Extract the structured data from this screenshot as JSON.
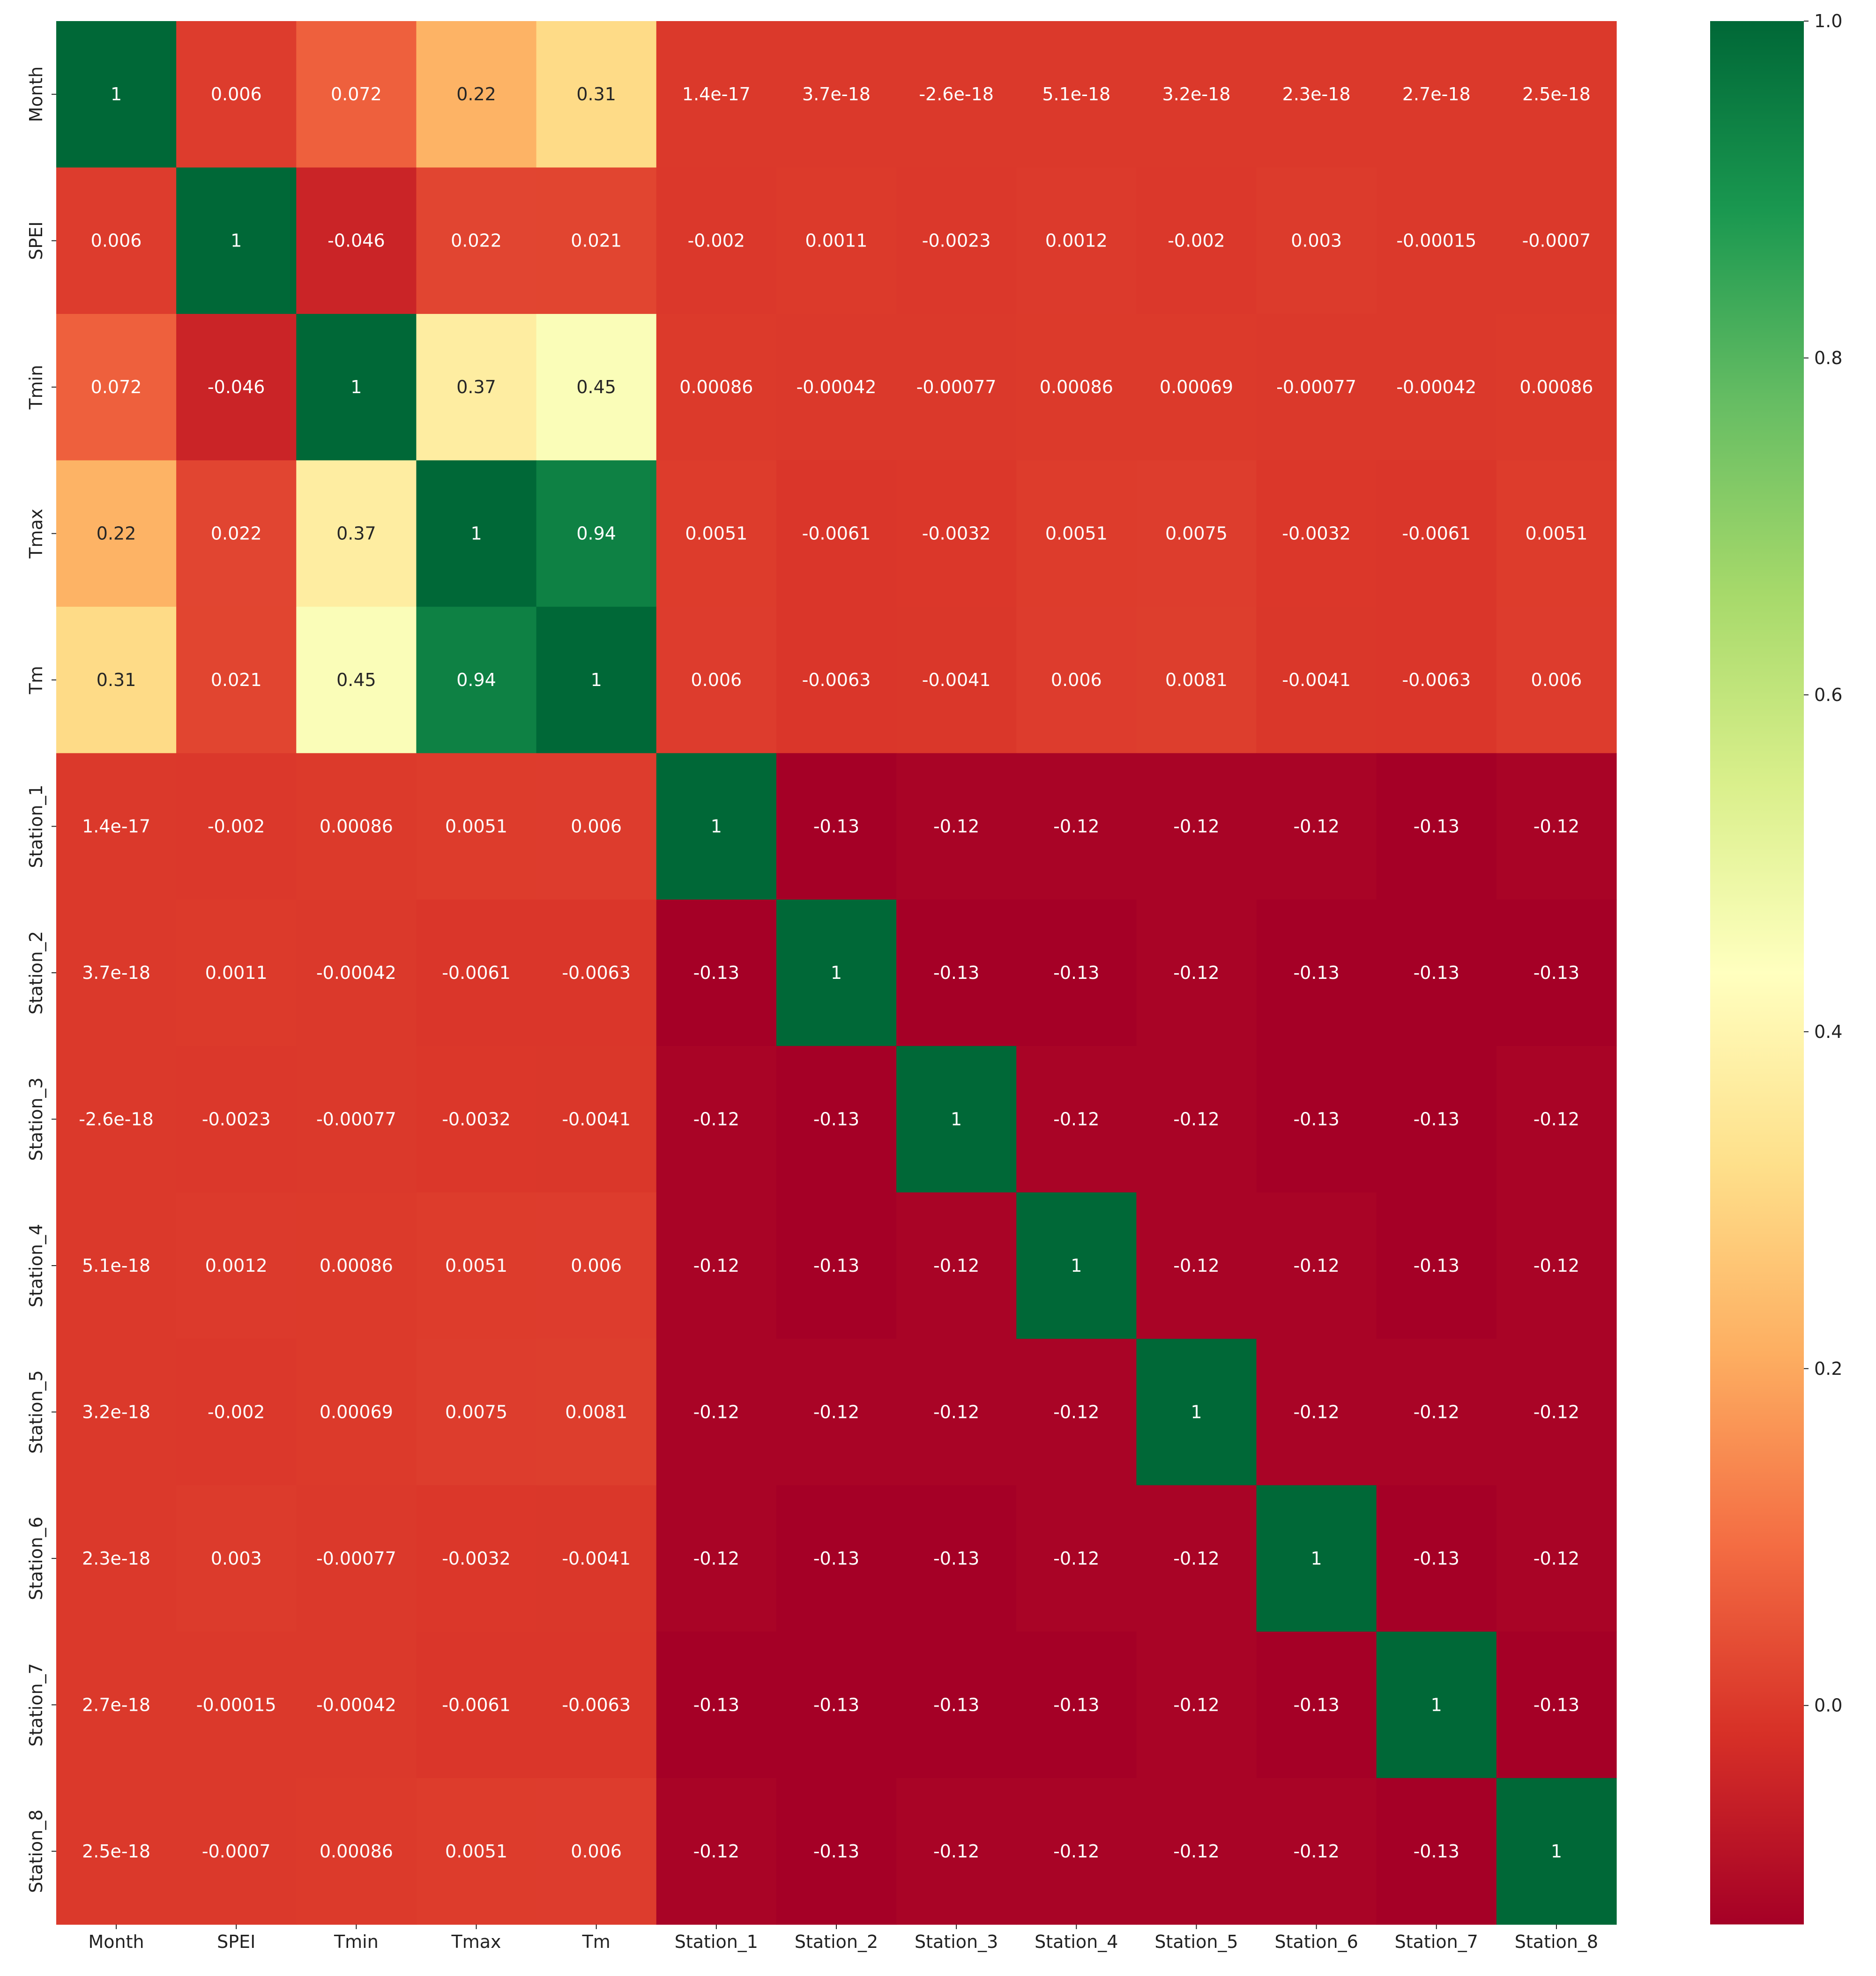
{
  "chart_data": {
    "type": "heatmap",
    "title": "",
    "xlabel": "",
    "ylabel": "",
    "labels": [
      "Month",
      "SPEI",
      "Tmin",
      "Tmax",
      "Tm",
      "Station_1",
      "Station_2",
      "Station_3",
      "Station_4",
      "Station_5",
      "Station_6",
      "Station_7",
      "Station_8"
    ],
    "matrix": [
      [
        "1",
        "0.006",
        "0.072",
        "0.22",
        "0.31",
        "1.4e-17",
        "3.7e-18",
        "-2.6e-18",
        "5.1e-18",
        "3.2e-18",
        "2.3e-18",
        "2.7e-18",
        "2.5e-18"
      ],
      [
        "0.006",
        "1",
        "-0.046",
        "0.022",
        "0.021",
        "-0.002",
        "0.0011",
        "-0.0023",
        "0.0012",
        "-0.002",
        "0.003",
        "-0.00015",
        "-0.0007"
      ],
      [
        "0.072",
        "-0.046",
        "1",
        "0.37",
        "0.45",
        "0.00086",
        "-0.00042",
        "-0.00077",
        "0.00086",
        "0.00069",
        "-0.00077",
        "-0.00042",
        "0.00086"
      ],
      [
        "0.22",
        "0.022",
        "0.37",
        "1",
        "0.94",
        "0.0051",
        "-0.0061",
        "-0.0032",
        "0.0051",
        "0.0075",
        "-0.0032",
        "-0.0061",
        "0.0051"
      ],
      [
        "0.31",
        "0.021",
        "0.45",
        "0.94",
        "1",
        "0.006",
        "-0.0063",
        "-0.0041",
        "0.006",
        "0.0081",
        "-0.0041",
        "-0.0063",
        "0.006"
      ],
      [
        "1.4e-17",
        "-0.002",
        "0.00086",
        "0.0051",
        "0.006",
        "1",
        "-0.13",
        "-0.12",
        "-0.12",
        "-0.12",
        "-0.12",
        "-0.13",
        "-0.12"
      ],
      [
        "3.7e-18",
        "0.0011",
        "-0.00042",
        "-0.0061",
        "-0.0063",
        "-0.13",
        "1",
        "-0.13",
        "-0.13",
        "-0.12",
        "-0.13",
        "-0.13",
        "-0.13"
      ],
      [
        "-2.6e-18",
        "-0.0023",
        "-0.00077",
        "-0.0032",
        "-0.0041",
        "-0.12",
        "-0.13",
        "1",
        "-0.12",
        "-0.12",
        "-0.13",
        "-0.13",
        "-0.12"
      ],
      [
        "5.1e-18",
        "0.0012",
        "0.00086",
        "0.0051",
        "0.006",
        "-0.12",
        "-0.13",
        "-0.12",
        "1",
        "-0.12",
        "-0.12",
        "-0.13",
        "-0.12"
      ],
      [
        "3.2e-18",
        "-0.002",
        "0.00069",
        "0.0075",
        "0.0081",
        "-0.12",
        "-0.12",
        "-0.12",
        "-0.12",
        "1",
        "-0.12",
        "-0.12",
        "-0.12"
      ],
      [
        "2.3e-18",
        "0.003",
        "-0.00077",
        "-0.0032",
        "-0.0041",
        "-0.12",
        "-0.13",
        "-0.13",
        "-0.12",
        "-0.12",
        "1",
        "-0.13",
        "-0.12"
      ],
      [
        "2.7e-18",
        "-0.00015",
        "-0.00042",
        "-0.0061",
        "-0.0063",
        "-0.13",
        "-0.13",
        "-0.13",
        "-0.13",
        "-0.12",
        "-0.13",
        "1",
        "-0.13"
      ],
      [
        "2.5e-18",
        "-0.0007",
        "0.00086",
        "0.0051",
        "0.006",
        "-0.12",
        "-0.13",
        "-0.12",
        "-0.12",
        "-0.12",
        "-0.12",
        "-0.13",
        "1"
      ]
    ],
    "colormap": "RdYlGn",
    "color_range": [
      -0.13,
      1.0
    ],
    "colorbar_ticks": [
      "0.0",
      "0.2",
      "0.4",
      "0.6",
      "0.8",
      "1.0"
    ],
    "annotated": true,
    "grid": false,
    "legend": "right colorbar"
  }
}
